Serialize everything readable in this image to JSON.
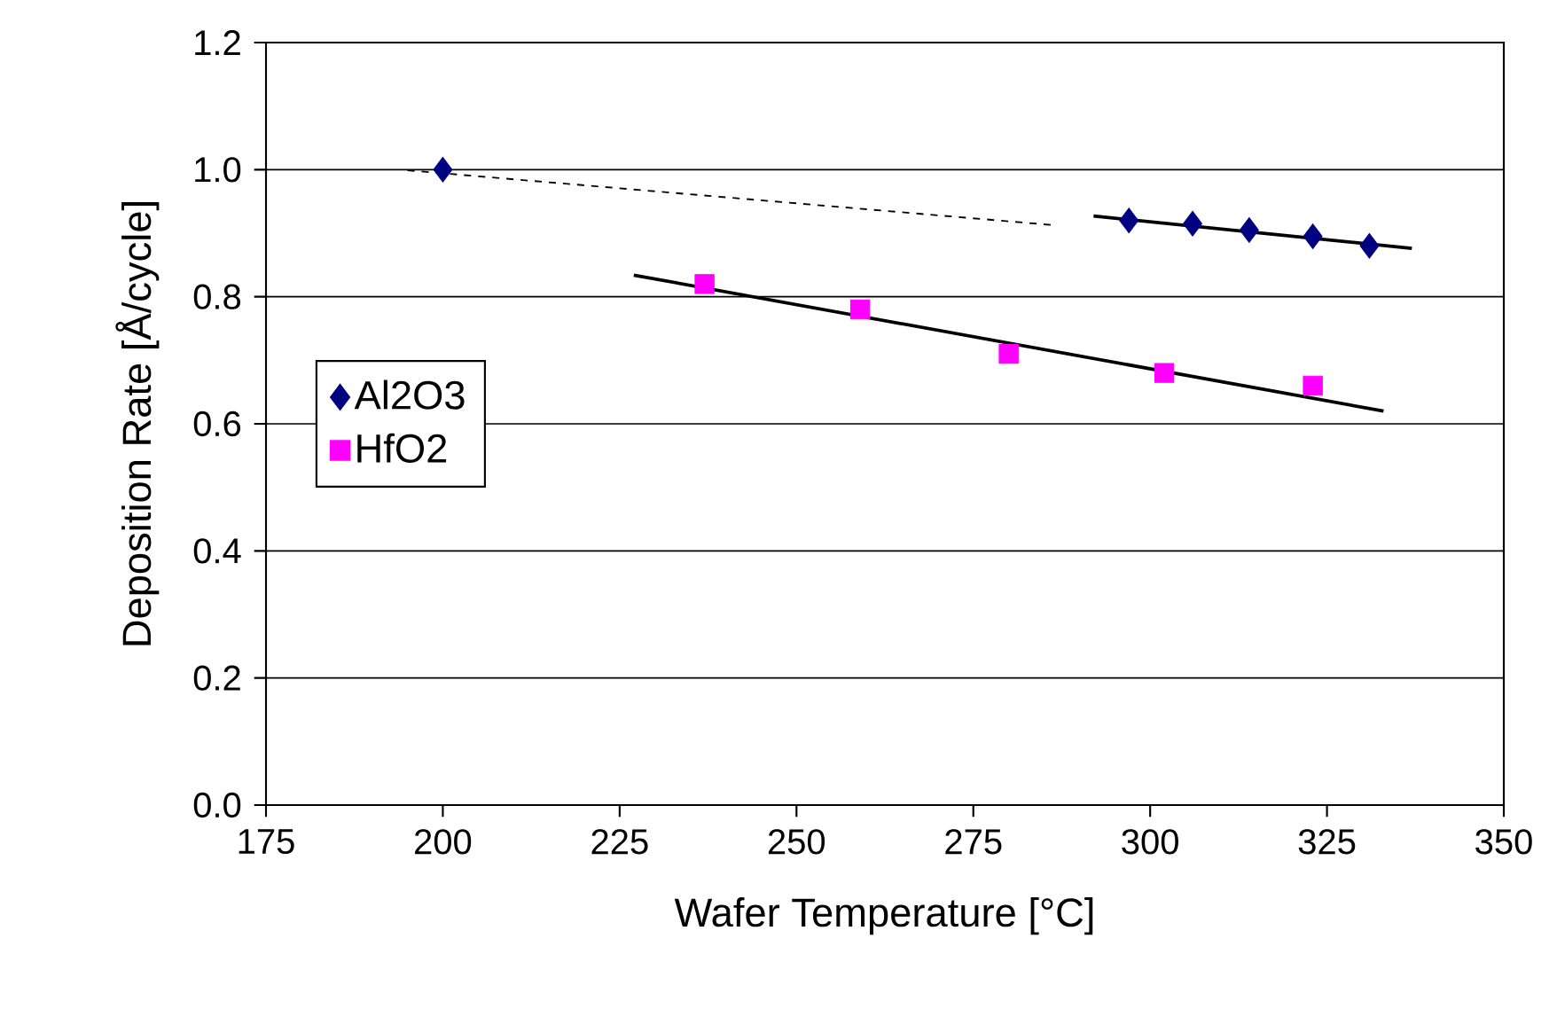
{
  "chart_data": {
    "type": "scatter",
    "xlabel": "Wafer Temperature [°C]",
    "ylabel": "Deposition Rate [Å/cycle]",
    "xlim": [
      175,
      350
    ],
    "xticks": [
      175,
      200,
      225,
      250,
      275,
      300,
      325,
      350
    ],
    "ylim": [
      0,
      1.2
    ],
    "yticks": [
      {
        "value": 0,
        "label": "0.0"
      },
      {
        "value": 0.2,
        "label": "0.2"
      },
      {
        "value": 0.4,
        "label": "0.4"
      },
      {
        "value": 0.6,
        "label": "0.6"
      },
      {
        "value": 0.8,
        "label": "0.8"
      },
      {
        "value": 1.0,
        "label": "1.0"
      },
      {
        "value": 1.2,
        "label": "1.2"
      }
    ],
    "grid": "y",
    "legend": "left",
    "series": [
      {
        "name": "Al2O3",
        "marker": "diamond",
        "color": "#000080",
        "x": [
          200,
          297,
          306,
          314,
          323,
          331
        ],
        "values": [
          1.0,
          0.92,
          0.915,
          0.905,
          0.895,
          0.88
        ]
      },
      {
        "name": "HfO2",
        "marker": "square",
        "color": "#ff00ff",
        "x": [
          237,
          259,
          280,
          302,
          323
        ],
        "values": [
          0.82,
          0.78,
          0.71,
          0.68,
          0.66
        ]
      },
      {
        "type": "line",
        "line_style": "solid",
        "color": "#000000",
        "x": [
          292,
          337
        ],
        "values": [
          0.927,
          0.876
        ]
      },
      {
        "type": "line",
        "line_style": "dashed",
        "color": "#000000",
        "x": [
          195,
          286
        ],
        "values": [
          0.999,
          0.913
        ]
      },
      {
        "type": "line",
        "line_style": "solid",
        "color": "#000000",
        "x": [
          227,
          333
        ],
        "values": [
          0.834,
          0.62
        ]
      }
    ]
  }
}
